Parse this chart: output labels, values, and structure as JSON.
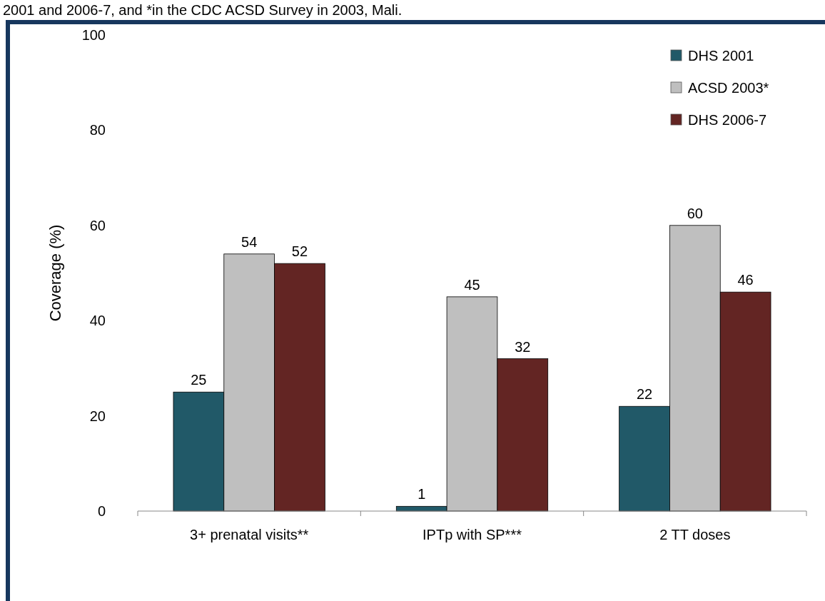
{
  "chart_data": {
    "type": "bar",
    "ylabel": "Coverage (%)",
    "categories": [
      "3+ prenatal visits**",
      "IPTp with SP***",
      "2 TT doses"
    ],
    "series": [
      {
        "name": "DHS 2001",
        "color": "#215968",
        "values": [
          25,
          1,
          22
        ]
      },
      {
        "name": "ACSD 2003*",
        "color": "#bfbfbf",
        "values": [
          54,
          45,
          60
        ]
      },
      {
        "name": "DHS 2006-7",
        "color": "#632523",
        "values": [
          52,
          32,
          46
        ]
      }
    ],
    "ylim": [
      0,
      100
    ],
    "yticks": [
      0,
      20,
      40,
      60,
      80,
      100
    ],
    "grid": false,
    "legend": "top right",
    "data_labels": true,
    "annotations": [
      "2001 and 2006-7, and *in the CDC ACSD Survey in 2003, Mali."
    ]
  }
}
